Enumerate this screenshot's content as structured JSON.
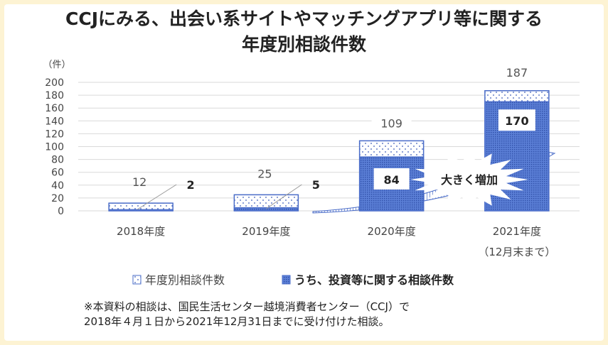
{
  "chart_data": {
    "type": "bar",
    "title_line1": "CCJにみる、出会い系サイトやマッチングアプリ等に関する",
    "title_line2": "年度別相談件数",
    "ylabel": "（件）",
    "ylim": [
      0,
      200
    ],
    "yticks": [
      0,
      20,
      40,
      60,
      80,
      100,
      120,
      140,
      160,
      180,
      200
    ],
    "categories": [
      "2018年度",
      "2019年度",
      "2020年度",
      "2021年度"
    ],
    "category_sublabel": "（12月末まで）",
    "series": [
      {
        "name": "年度別相談件数",
        "values": [
          12,
          25,
          109,
          187
        ]
      },
      {
        "name": "うち、投資等に関する相談件数",
        "values": [
          2,
          5,
          84,
          170
        ]
      }
    ],
    "annotation": "大きく増加",
    "legend_position": "bottom",
    "grid": true
  },
  "footnote_line1": "※本資料の相談は、国民生活センター越境消費者センター（CCJ）で",
  "footnote_line2": "2018年４月１日から2021年12月31日までに受け付けた相談。",
  "colors": {
    "background": "#fdf3d3",
    "bar_border": "#4a6cc8",
    "bar_fill": "#5b7fd6",
    "text": "#222222"
  }
}
